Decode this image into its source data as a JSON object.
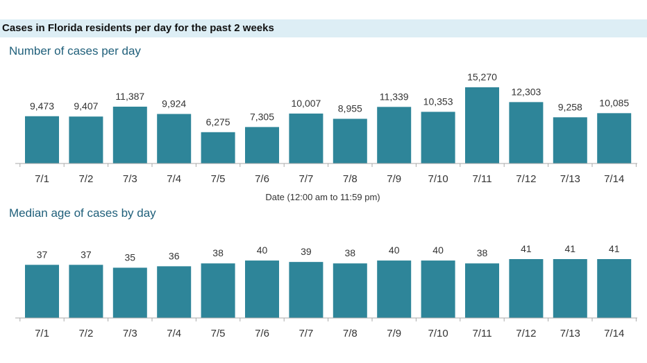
{
  "header": {
    "title": "Cases in Florida residents per day for the past 2 weeks"
  },
  "colors": {
    "bar": "#2e8599",
    "header_band": "#ddeef5",
    "section_title": "#1f5f7a",
    "axis": "#aaaaaa"
  },
  "chart_data": [
    {
      "type": "bar",
      "title": "Number of cases per day",
      "xlabel": "Date (12:00 am to 11:59 pm)",
      "ylabel": "",
      "categories": [
        "7/1",
        "7/2",
        "7/3",
        "7/4",
        "7/5",
        "7/6",
        "7/7",
        "7/8",
        "7/9",
        "7/10",
        "7/11",
        "7/12",
        "7/13",
        "7/14"
      ],
      "values": [
        9473,
        9407,
        11387,
        9924,
        6275,
        7305,
        10007,
        8955,
        11339,
        10353,
        15270,
        12303,
        9258,
        10085
      ],
      "value_labels": [
        "9,473",
        "9,407",
        "11,387",
        "9,924",
        "6,275",
        "7,305",
        "10,007",
        "8,955",
        "11,339",
        "10,353",
        "15,270",
        "12,303",
        "9,258",
        "10,085"
      ],
      "ylim": [
        0,
        15270
      ],
      "grid": false
    },
    {
      "type": "bar",
      "title": "Median age of cases by day",
      "xlabel": "",
      "ylabel": "",
      "categories": [
        "7/1",
        "7/2",
        "7/3",
        "7/4",
        "7/5",
        "7/6",
        "7/7",
        "7/8",
        "7/9",
        "7/10",
        "7/11",
        "7/12",
        "7/13",
        "7/14"
      ],
      "values": [
        37,
        37,
        35,
        36,
        38,
        40,
        39,
        38,
        40,
        40,
        38,
        41,
        41,
        41
      ],
      "value_labels": [
        "37",
        "37",
        "35",
        "36",
        "38",
        "40",
        "39",
        "38",
        "40",
        "40",
        "38",
        "41",
        "41",
        "41"
      ],
      "ylim": [
        0,
        41
      ],
      "grid": false
    }
  ]
}
